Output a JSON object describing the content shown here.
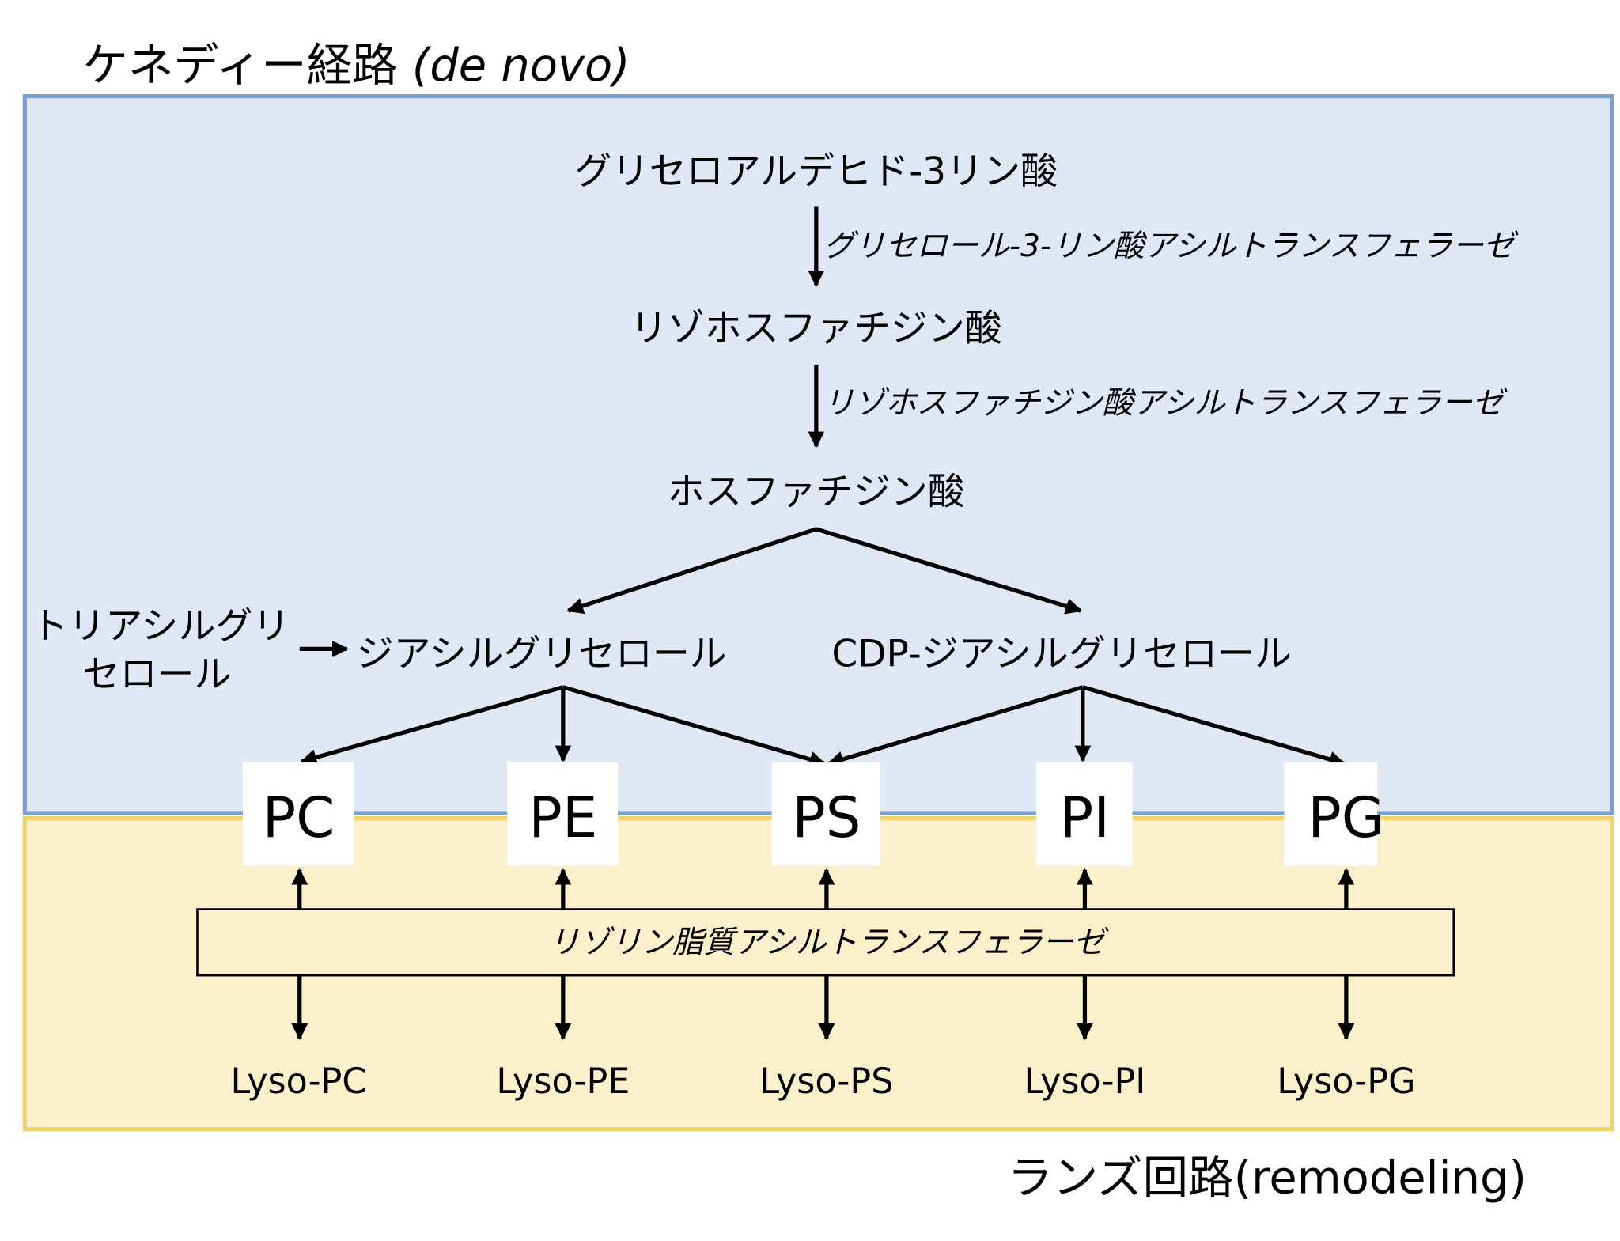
{
  "titles": {
    "kennedy_main": "ケネディー経路 ",
    "kennedy_italic": "(de novo)",
    "lands": "ランズ回路(remodeling)"
  },
  "nodes": {
    "g3p": "グリセロアルデヒド-3リン酸",
    "lpa": "リゾホスファチジン酸",
    "pa": "ホスファチジン酸",
    "tag_line1": "トリアシルグリ",
    "tag_line2": "セロール",
    "dag": "ジアシルグリセロール",
    "cdp_dag": "CDP-ジアシルグリセロール"
  },
  "enzymes": {
    "gpat": "グリセロール-3-リン酸アシルトランスフェラーゼ",
    "lpaat": "リゾホスファチジン酸アシルトランスフェラーゼ",
    "lplat": "リゾリン脂質アシルトランスフェラーゼ"
  },
  "lipids": [
    "PC",
    "PE",
    "PS",
    "PI",
    "PG"
  ],
  "lyso": [
    "Lyso-PC",
    "Lyso-PE",
    "Lyso-PS",
    "Lyso-PI",
    "Lyso-PG"
  ],
  "colors": {
    "kennedy_fill": "#e0e8f5",
    "kennedy_border": "#7aa0d4",
    "lands_fill": "#faf0cc",
    "lands_border": "#f0d36a"
  }
}
